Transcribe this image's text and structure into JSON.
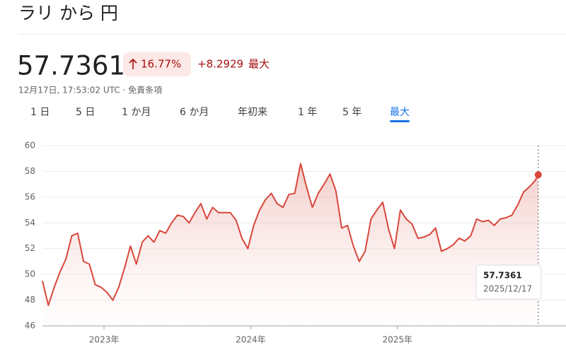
{
  "header": {
    "title": "ラリ から 円",
    "price": "57.7361",
    "change_percent": "16.77%",
    "change": "+8.2929",
    "period": "最大",
    "timestamp": "12月17日, 17:53:02 UTC · 免責条項"
  },
  "tabs": [
    "1 日",
    "5 日",
    "1 か月",
    "6 か月",
    "年初来",
    "1 年",
    "5 年",
    "最大"
  ],
  "selected_tab": 7,
  "tooltip": {
    "date": "2025/12/17"
  },
  "chart_data": {
    "type": "line",
    "x": [
      2022.58,
      2022.62,
      2022.66,
      2022.7,
      2022.74,
      2022.78,
      2022.82,
      2022.86,
      2022.9,
      2022.94,
      2022.98,
      2023.02,
      2023.06,
      2023.1,
      2023.14,
      2023.18,
      2023.22,
      2023.26,
      2023.3,
      2023.34,
      2023.38,
      2023.42,
      2023.46,
      2023.5,
      2023.54,
      2023.58,
      2023.62,
      2023.66,
      2023.7,
      2023.74,
      2023.78,
      2023.82,
      2023.86,
      2023.9,
      2023.94,
      2023.98,
      2024.02,
      2024.06,
      2024.1,
      2024.14,
      2024.18,
      2024.22,
      2024.26,
      2024.3,
      2024.34,
      2024.38,
      2024.42,
      2024.46,
      2024.5,
      2024.54,
      2024.58,
      2024.62,
      2024.66,
      2024.7,
      2024.74,
      2024.78,
      2024.82,
      2024.86,
      2024.9,
      2024.94,
      2024.98,
      2025.02,
      2025.06,
      2025.1,
      2025.14,
      2025.18,
      2025.22,
      2025.26,
      2025.3,
      2025.34,
      2025.38,
      2025.42,
      2025.46,
      2025.5,
      2025.54,
      2025.58,
      2025.62,
      2025.66,
      2025.7,
      2025.74,
      2025.78,
      2025.82,
      2025.86,
      2025.9,
      2025.94,
      2025.96
    ],
    "series": [
      {
        "color": "#d9473b",
        "values": [
          49.5,
          47.6,
          49.0,
          50.2,
          51.2,
          53.0,
          53.2,
          51.0,
          50.8,
          49.2,
          49.0,
          48.6,
          48.0,
          49.0,
          50.5,
          52.2,
          50.8,
          52.5,
          53.0,
          52.5,
          53.4,
          53.2,
          54.0,
          54.6,
          54.5,
          54.0,
          54.8,
          55.5,
          54.3,
          55.2,
          54.8,
          54.8,
          54.8,
          54.2,
          52.8,
          52.0,
          53.8,
          55.0,
          55.8,
          56.3,
          55.5,
          55.2,
          56.2,
          56.3,
          58.6,
          56.8,
          55.2,
          56.3,
          57.0,
          57.8,
          56.5,
          53.6,
          53.8,
          52.2,
          51.0,
          51.8,
          54.3,
          55.0,
          55.6,
          53.5,
          52.0,
          55.0,
          54.3,
          53.9,
          52.8,
          52.9,
          53.1,
          53.6,
          51.8,
          52.0,
          52.3,
          52.8,
          52.6,
          53.0,
          54.3,
          54.1,
          54.2,
          53.8,
          54.3,
          54.4,
          54.6,
          55.4,
          56.4,
          56.8,
          57.3,
          57.7361
        ]
      }
    ],
    "xlim": [
      2022.58,
      2025.99
    ],
    "xticks": [
      {
        "value": 2023,
        "label": "2023年"
      },
      {
        "value": 2024,
        "label": "2024年"
      },
      {
        "value": 2025,
        "label": "2025年"
      }
    ],
    "ylim": [
      46,
      60
    ],
    "yticks": [
      46,
      48,
      50,
      52,
      54,
      56,
      58,
      60
    ],
    "grid": true
  }
}
